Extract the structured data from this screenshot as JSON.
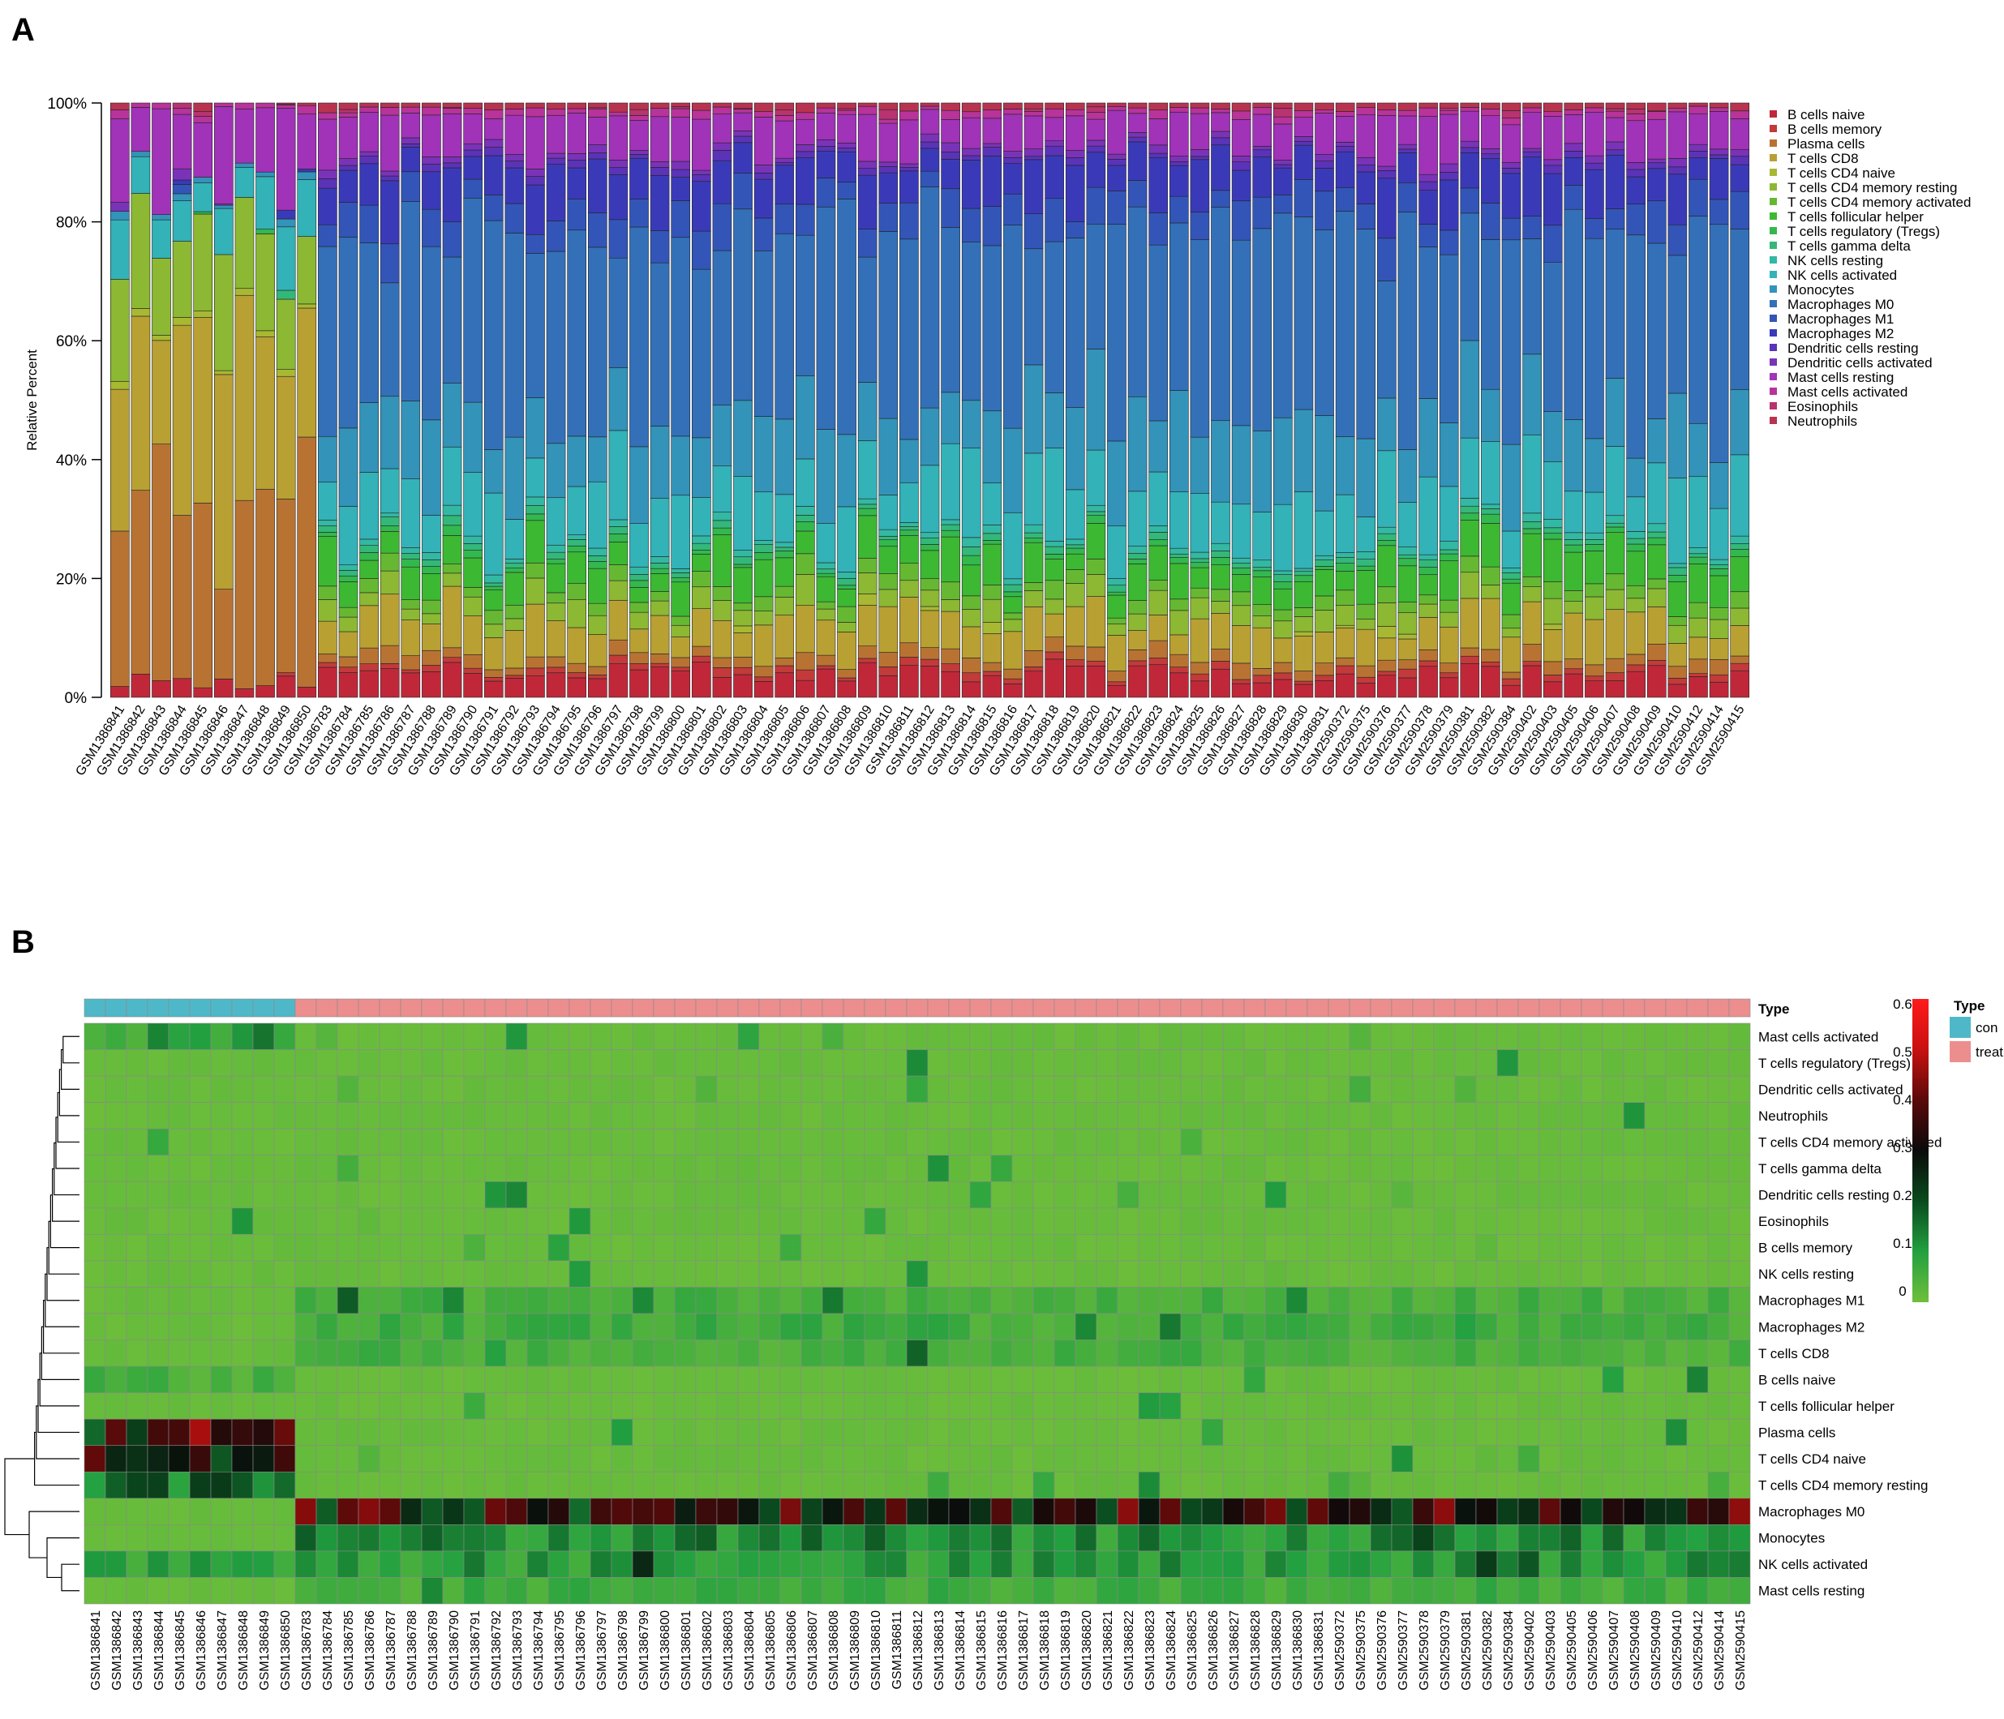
{
  "panels": {
    "a_label": "A",
    "b_label": "B"
  },
  "cell_types": [
    "B cells naive",
    "B cells memory",
    "Plasma cells",
    "T cells CD8",
    "T cells CD4 naive",
    "T cells CD4 memory resting",
    "T cells CD4 memory activated",
    "T cells follicular helper",
    "T cells regulatory (Tregs)",
    "T cells gamma delta",
    "NK cells resting",
    "NK cells activated",
    "Monocytes",
    "Macrophages M0",
    "Macrophages M1",
    "Macrophages M2",
    "Dendritic cells resting",
    "Dendritic cells activated",
    "Mast cells resting",
    "Mast cells activated",
    "Eosinophils",
    "Neutrophils"
  ],
  "colors": {
    "B cells naive": "#c0283a",
    "B cells memory": "#c33a3a",
    "Plasma cells": "#b87333",
    "T cells CD8": "#b8a033",
    "T cells CD4 naive": "#a8b833",
    "T cells CD4 memory resting": "#8cb833",
    "T cells CD4 memory activated": "#66b833",
    "T cells follicular helper": "#3cb833",
    "T cells regulatory (Tregs)": "#33b84d",
    "T cells gamma delta": "#33b87a",
    "NK cells resting": "#33b8a3",
    "NK cells activated": "#33b2b8",
    "Monocytes": "#3393b8",
    "Macrophages M0": "#3370b8",
    "Macrophages M1": "#3355b8",
    "Macrophages M2": "#3a3ab8",
    "Dendritic cells resting": "#5a33b8",
    "Dendritic cells activated": "#7a33b8",
    "Mast cells resting": "#a033b8",
    "Mast cells activated": "#b8339a",
    "Eosinophils": "#b83370",
    "Neutrophils": "#b83350",
    "con": "#4fb8c8",
    "treat": "#ec8e8e"
  },
  "samples": [
    "GSM1386841",
    "GSM1386842",
    "GSM1386843",
    "GSM1386844",
    "GSM1386845",
    "GSM1386846",
    "GSM1386847",
    "GSM1386848",
    "GSM1386849",
    "GSM1386850",
    "GSM1386783",
    "GSM1386784",
    "GSM1386785",
    "GSM1386786",
    "GSM1386787",
    "GSM1386788",
    "GSM1386789",
    "GSM1386790",
    "GSM1386791",
    "GSM1386792",
    "GSM1386793",
    "GSM1386794",
    "GSM1386795",
    "GSM1386796",
    "GSM1386797",
    "GSM1386798",
    "GSM1386799",
    "GSM1386800",
    "GSM1386801",
    "GSM1386802",
    "GSM1386803",
    "GSM1386804",
    "GSM1386805",
    "GSM1386806",
    "GSM1386807",
    "GSM1386808",
    "GSM1386809",
    "GSM1386810",
    "GSM1386811",
    "GSM1386812",
    "GSM1386813",
    "GSM1386814",
    "GSM1386815",
    "GSM1386816",
    "GSM1386817",
    "GSM1386818",
    "GSM1386819",
    "GSM1386820",
    "GSM1386821",
    "GSM1386822",
    "GSM1386823",
    "GSM1386824",
    "GSM1386825",
    "GSM1386826",
    "GSM1386827",
    "GSM1386828",
    "GSM1386829",
    "GSM1386830",
    "GSM1386831",
    "GSM2590372",
    "GSM2590375",
    "GSM2590376",
    "GSM2590377",
    "GSM2590378",
    "GSM2590379",
    "GSM2590381",
    "GSM2590382",
    "GSM2590384",
    "GSM2590402",
    "GSM2590403",
    "GSM2590405",
    "GSM2590406",
    "GSM2590407",
    "GSM2590408",
    "GSM2590409",
    "GSM2590410",
    "GSM2590412",
    "GSM2590414",
    "GSM2590415"
  ],
  "chart_data": [
    {
      "type": "stacked-bar",
      "panel": "A",
      "ylabel": "Relative Percent",
      "ylim": [
        0,
        100
      ],
      "yticks": [
        "0%",
        "20%",
        "40%",
        "60%",
        "80%",
        "100%"
      ],
      "legend_position": "right",
      "note": "Each bar = one sample; segments listed bottom-to-top in cell_types order; values are percent of immune infiltrate.",
      "groups": [
        {
          "name": "con_profile",
          "samples": 10,
          "segments": {
            "B cells naive": 3,
            "Plasma cells": 29,
            "T cells CD8": 29,
            "T cells CD4 naive": 1,
            "T cells CD4 memory resting": 15,
            "NK cells activated": 8,
            "Monocytes": 1,
            "Mast cells resting": 13,
            "Mast cells activated": 1
          }
        },
        {
          "name": "treat_profile",
          "samples": 69,
          "segments": {
            "B cells naive": 4,
            "B cells memory": 1,
            "Plasma cells": 2,
            "T cells CD8": 6,
            "T cells CD4 memory resting": 3,
            "T cells CD4 memory activated": 2,
            "T cells follicular helper": 5,
            "T cells regulatory (Tregs)": 1,
            "T cells gamma delta": 1,
            "NK cells resting": 1,
            "NK cells activated": 10,
            "Monocytes": 12,
            "Macrophages M0": 30,
            "Macrophages M1": 5,
            "Macrophages M2": 7,
            "Dendritic cells resting": 1,
            "Dendritic cells activated": 1,
            "Mast cells resting": 6,
            "Mast cells activated": 1,
            "Neutrophils": 1
          }
        }
      ]
    },
    {
      "type": "heatmap",
      "panel": "B",
      "annotation_title": "Type",
      "annotation_groups": [
        {
          "name": "con",
          "count": 10
        },
        {
          "name": "treat",
          "count": 69
        }
      ],
      "legend_title": "Type",
      "color_scale": {
        "min": 0,
        "max": 0.6,
        "ticks": [
          "0",
          "0.1",
          "0.2",
          "0.3",
          "0.4",
          "0.5",
          "0.6"
        ],
        "stops": [
          "#6fbf3a",
          "#22a040",
          "#0a4a1e",
          "#0a0a0a",
          "#5a0a0a",
          "#c81010",
          "#ff1a1a"
        ]
      },
      "rows": [
        "Mast cells activated",
        "T cells regulatory (Tregs)",
        "Dendritic cells activated",
        "Neutrophils",
        "T cells CD4 memory activated",
        "T cells gamma delta",
        "Dendritic cells resting",
        "Eosinophils",
        "B cells memory",
        "NK cells resting",
        "Macrophages M1",
        "Macrophages M2",
        "T cells CD8",
        "B cells naive",
        "T cells follicular helper",
        "Plasma cells",
        "T cells CD4 naive",
        "T cells CD4 memory resting",
        "Macrophages M0",
        "Monocytes",
        "NK cells activated",
        "Mast cells resting"
      ],
      "typical_values": {
        "con": {
          "Mast cells activated": 0.08,
          "Plasma cells": 0.3,
          "T cells CD4 naive": 0.28,
          "T cells CD4 memory resting": 0.15,
          "NK cells activated": 0.08,
          "B cells naive": 0.05
        },
        "treat": {
          "Macrophages M0": 0.3,
          "Monocytes": 0.12,
          "NK cells activated": 0.1,
          "Mast cells resting": 0.06,
          "T cells CD8": 0.05,
          "Macrophages M1": 0.05,
          "Macrophages M2": 0.06
        }
      }
    }
  ]
}
